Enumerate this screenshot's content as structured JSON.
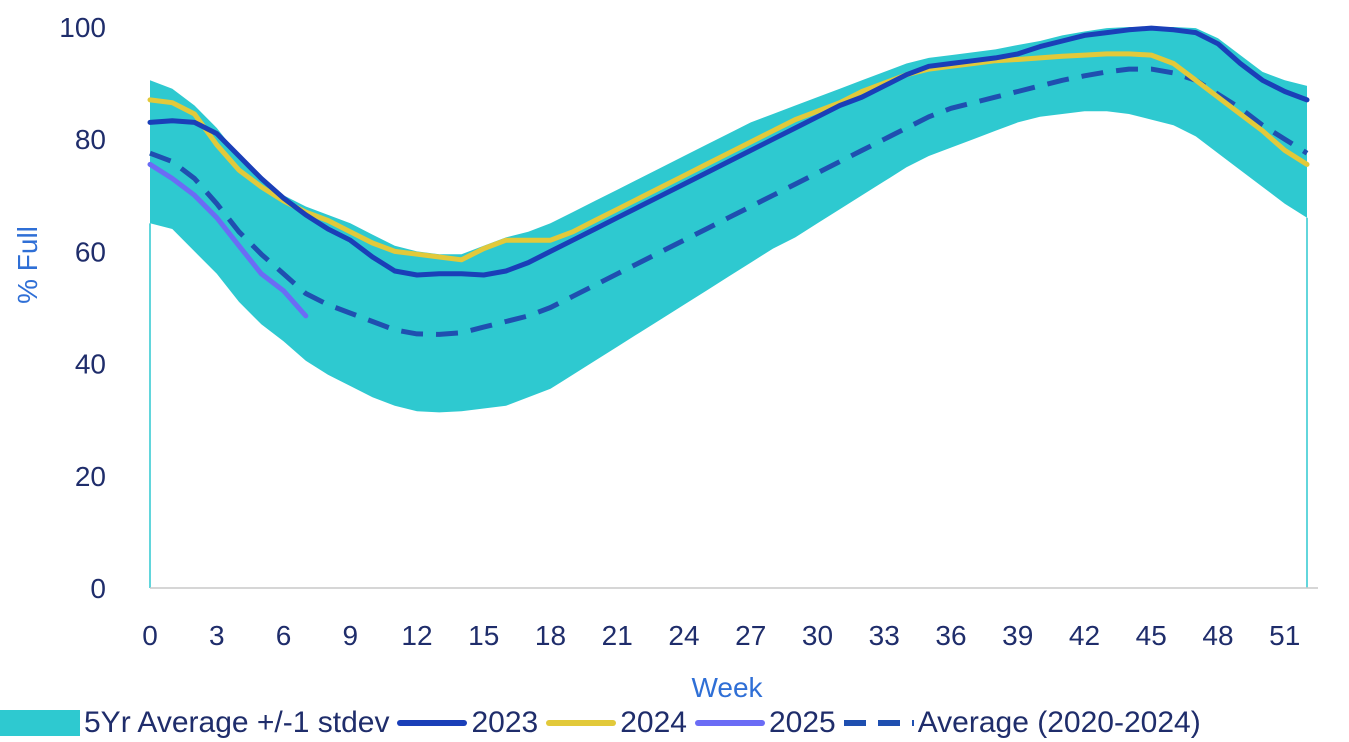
{
  "chart_data": {
    "type": "line",
    "title": "",
    "xlabel": "Week",
    "ylabel": "% Full",
    "xlim": [
      0,
      52
    ],
    "ylim": [
      0,
      100
    ],
    "x_ticks": [
      0,
      3,
      6,
      9,
      12,
      15,
      18,
      21,
      24,
      27,
      30,
      33,
      36,
      39,
      42,
      45,
      48,
      51
    ],
    "y_ticks": [
      0,
      20,
      40,
      60,
      80,
      100
    ],
    "grid": false,
    "legend_position": "bottom",
    "band": {
      "name": "5Yr Average +/-1 stdev",
      "color": "#2ec9d0",
      "x": [
        0,
        1,
        2,
        3,
        4,
        5,
        6,
        7,
        8,
        9,
        10,
        11,
        12,
        13,
        14,
        15,
        16,
        17,
        18,
        19,
        20,
        21,
        22,
        23,
        24,
        25,
        26,
        27,
        28,
        29,
        30,
        31,
        32,
        33,
        34,
        35,
        36,
        37,
        38,
        39,
        40,
        41,
        42,
        43,
        44,
        45,
        46,
        47,
        48,
        49,
        50,
        51,
        52
      ],
      "upper": [
        90.5,
        89,
        86,
        82,
        77,
        73,
        70,
        68,
        66.5,
        65,
        63,
        61,
        60,
        59.5,
        59.5,
        61,
        62.5,
        63.5,
        65,
        67,
        69,
        71,
        73,
        75,
        77,
        79,
        81,
        83,
        84.5,
        86,
        87.5,
        89,
        90.5,
        92,
        93.5,
        94.5,
        95,
        95.5,
        96,
        96.8,
        97.5,
        98.5,
        99.2,
        99.8,
        100,
        100,
        100,
        99.8,
        98,
        95,
        92,
        90.5,
        89.5
      ],
      "lower": [
        65,
        64,
        60,
        56,
        51,
        47,
        44,
        40.5,
        38,
        36,
        34,
        32.5,
        31.5,
        31.3,
        31.5,
        32,
        32.5,
        34,
        35.5,
        38,
        40.5,
        43,
        45.5,
        48,
        50.5,
        53,
        55.5,
        58,
        60.5,
        62.5,
        65,
        67.5,
        70,
        72.5,
        75,
        77,
        78.5,
        80,
        81.5,
        83,
        84,
        84.5,
        85,
        85,
        84.5,
        83.5,
        82.5,
        80.5,
        77.5,
        74.5,
        71.5,
        68.5,
        66
      ]
    },
    "series": [
      {
        "name": "2023",
        "color": "#1a3fb8",
        "x": [
          0,
          1,
          2,
          3,
          4,
          5,
          6,
          7,
          8,
          9,
          10,
          11,
          12,
          13,
          14,
          15,
          16,
          17,
          18,
          19,
          20,
          21,
          22,
          23,
          24,
          25,
          26,
          27,
          28,
          29,
          30,
          31,
          32,
          33,
          34,
          35,
          36,
          37,
          38,
          39,
          40,
          41,
          42,
          43,
          44,
          45,
          46,
          47,
          48,
          49,
          50,
          51,
          52
        ],
        "values": [
          83,
          83.3,
          83,
          81,
          77,
          73,
          69.5,
          66.5,
          64,
          62,
          59,
          56.5,
          55.8,
          56,
          56,
          55.8,
          56.5,
          58,
          60,
          62,
          64,
          66,
          68,
          70,
          72,
          74,
          76,
          78,
          80,
          82,
          84,
          86,
          87.5,
          89.5,
          91.5,
          93,
          93.5,
          94,
          94.5,
          95.2,
          96.5,
          97.5,
          98.5,
          99,
          99.5,
          99.8,
          99.5,
          99,
          97,
          93.5,
          90.5,
          88.5,
          87
        ]
      },
      {
        "name": "2024",
        "color": "#e2c93a",
        "x": [
          0,
          1,
          2,
          3,
          4,
          5,
          6,
          7,
          8,
          9,
          10,
          11,
          12,
          13,
          14,
          15,
          16,
          17,
          18,
          19,
          20,
          21,
          22,
          23,
          24,
          25,
          26,
          27,
          28,
          29,
          30,
          31,
          32,
          33,
          34,
          35,
          36,
          37,
          38,
          39,
          40,
          41,
          42,
          43,
          44,
          45,
          46,
          47,
          48,
          49,
          50,
          51,
          52
        ],
        "values": [
          87,
          86.5,
          84.5,
          79,
          74.5,
          71.5,
          69,
          67,
          65.5,
          63.5,
          61.5,
          60,
          59.5,
          59,
          58.5,
          60.5,
          62,
          62,
          62,
          63.5,
          65.5,
          67.5,
          69.5,
          71.5,
          73.5,
          75.5,
          77.5,
          79.5,
          81.5,
          83.5,
          85,
          86.5,
          88.5,
          90,
          91.5,
          92.5,
          93,
          93.5,
          94,
          94.2,
          94.5,
          94.8,
          95,
          95.2,
          95.2,
          95,
          93.5,
          90.5,
          87.5,
          84.5,
          81.5,
          78,
          75.5
        ]
      },
      {
        "name": "2025",
        "color": "#6b6cf5",
        "x": [
          0,
          1,
          2,
          3,
          4,
          5,
          6,
          7
        ],
        "values": [
          75.5,
          73,
          70,
          66,
          61,
          56,
          53,
          48.5
        ]
      },
      {
        "name": "Average (2020-2024)",
        "color": "#1f4fb0",
        "dashed": true,
        "x": [
          0,
          1,
          2,
          3,
          4,
          5,
          6,
          7,
          8,
          9,
          10,
          11,
          12,
          13,
          14,
          15,
          16,
          17,
          18,
          19,
          20,
          21,
          22,
          23,
          24,
          25,
          26,
          27,
          28,
          29,
          30,
          31,
          32,
          33,
          34,
          35,
          36,
          37,
          38,
          39,
          40,
          41,
          42,
          43,
          44,
          45,
          46,
          47,
          48,
          49,
          50,
          51,
          52
        ],
        "values": [
          77.5,
          76,
          73,
          68.5,
          63.5,
          59.5,
          56,
          52.5,
          50.5,
          49,
          47.5,
          46,
          45.3,
          45.2,
          45.5,
          46.5,
          47.5,
          48.5,
          50,
          52,
          54,
          56,
          58,
          60,
          62,
          64,
          66,
          68,
          70,
          72,
          74,
          76,
          78,
          80,
          82,
          84,
          85.5,
          86.5,
          87.5,
          88.5,
          89.5,
          90.5,
          91.3,
          92,
          92.5,
          92.5,
          91.8,
          90.5,
          88,
          85.5,
          82.5,
          80,
          77.5
        ]
      }
    ]
  },
  "legend": {
    "items": [
      {
        "label": "5Yr Average +/-1 stdev",
        "kind": "box",
        "color": "#2ec9d0"
      },
      {
        "label": "2023",
        "kind": "line",
        "color": "#1a3fb8"
      },
      {
        "label": "2024",
        "kind": "line",
        "color": "#e2c93a"
      },
      {
        "label": "2025",
        "kind": "line",
        "color": "#6b6cf5"
      },
      {
        "label": "Average (2020-2024)",
        "kind": "dash",
        "color": "#1f4fb0"
      }
    ]
  }
}
